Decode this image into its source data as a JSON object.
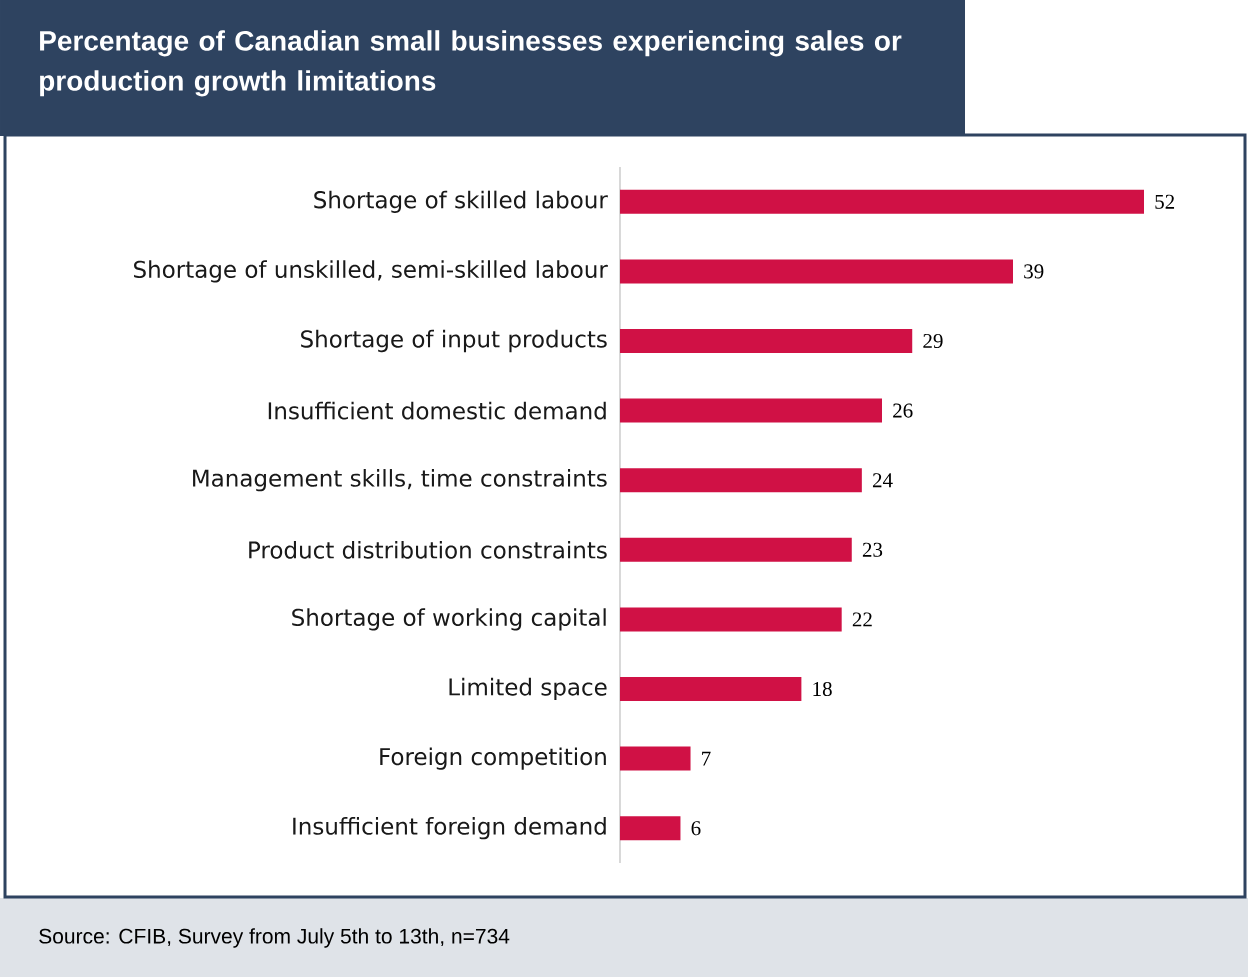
{
  "chart_data": {
    "type": "bar",
    "orientation": "horizontal",
    "title": "Percentage of Canadian small businesses experiencing sales or production growth limitations",
    "categories": [
      "Shortage of skilled labour",
      "Shortage of unskilled, semi-skilled labour",
      "Shortage of input products",
      "Insufficient domestic demand",
      "Management skills, time constraints",
      "Product distribution constraints",
      "Shortage of working capital",
      "Limited space",
      "Foreign competition",
      "Insufficient foreign demand"
    ],
    "values": [
      52,
      39,
      29,
      26,
      24,
      23,
      22,
      18,
      7,
      6
    ],
    "color": "#d01145",
    "data_labels": true,
    "tick_labels": "y",
    "annotations": [
      "Source: CFIB, Survey from July 5th to 13th, n=734"
    ]
  }
}
